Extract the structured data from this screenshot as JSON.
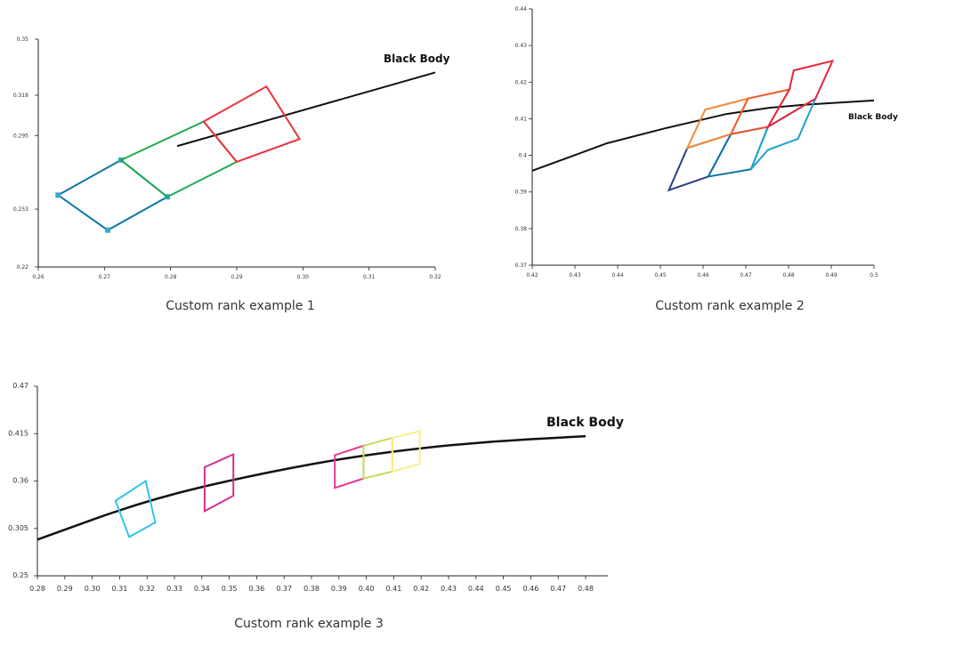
{
  "chart_data": [
    {
      "type": "line",
      "caption": "Custom rank example 1",
      "annotation": "Black Body",
      "xlim": [
        0.26,
        0.32
      ],
      "ylim": [
        0.22,
        0.35
      ],
      "xticks": [
        "0.26",
        "0.27",
        "0.28",
        "0.29",
        "0.30",
        "0.31",
        "0.32"
      ],
      "yticks": [
        "0.22",
        "0.253",
        "0.295",
        "0.318",
        "0.35"
      ],
      "yticks_values": [
        0.22,
        0.253,
        0.295,
        0.318,
        0.35
      ],
      "black_body_curve": [
        [
          0.281,
          0.289
        ],
        [
          0.32,
          0.331
        ]
      ],
      "series": [
        {
          "color": "#0a76a4",
          "points": [
            [
              0.263,
              0.261
            ],
            [
              0.2725,
              0.281
            ],
            [
              0.2795,
              0.26
            ],
            [
              0.2705,
              0.241
            ]
          ],
          "markers": "#3aa7c9"
        },
        {
          "color": "#1cab4e",
          "points": [
            [
              0.2725,
              0.281
            ],
            [
              0.285,
              0.303
            ],
            [
              0.29,
              0.28
            ],
            [
              0.2795,
              0.26
            ]
          ]
        },
        {
          "color": "#e8323a",
          "points": [
            [
              0.285,
              0.303
            ],
            [
              0.2945,
              0.323
            ],
            [
              0.2995,
              0.293
            ],
            [
              0.29,
              0.28
            ]
          ]
        }
      ]
    },
    {
      "type": "line",
      "caption": "Custom rank example 2",
      "annotation": "Black Body",
      "xlim": [
        0.42,
        0.5
      ],
      "ylim": [
        0.37,
        0.44
      ],
      "xticks": [
        "0.42",
        "0.43",
        "0.44",
        "0.45",
        "0.46",
        "0.47",
        "0.48",
        "0.49",
        "0.5"
      ],
      "yticks": [
        "0.37",
        "0.38",
        "0.39",
        "0.4",
        "0.41",
        "0.42",
        "0.43",
        "0.44"
      ],
      "black_body_curve": [
        [
          0.42,
          0.3958
        ],
        [
          0.4375,
          0.4033
        ],
        [
          0.4515,
          0.4075
        ],
        [
          0.4655,
          0.4113
        ],
        [
          0.4755,
          0.413
        ],
        [
          0.4835,
          0.4138
        ],
        [
          0.5,
          0.415
        ]
      ],
      "series": [
        {
          "color": "#2e3f86",
          "points": [
            [
              0.452,
              0.3905
            ],
            [
              0.4563,
              0.402
            ],
            [
              0.4665,
              0.4058
            ],
            [
              0.4612,
              0.3942
            ]
          ]
        },
        {
          "color": "#0a76a4",
          "points": [
            [
              0.4612,
              0.3942
            ],
            [
              0.4665,
              0.4058
            ],
            [
              0.4752,
              0.4078
            ],
            [
              0.4712,
              0.3962
            ]
          ]
        },
        {
          "color": "#1da3cc",
          "points": [
            [
              0.4712,
              0.3962
            ],
            [
              0.4752,
              0.4078
            ],
            [
              0.4863,
              0.4155
            ],
            [
              0.4822,
              0.4045
            ],
            [
              0.4752,
              0.4015
            ]
          ]
        },
        {
          "color": "#f08b3a",
          "points": [
            [
              0.4563,
              0.402
            ],
            [
              0.4605,
              0.4125
            ],
            [
              0.4705,
              0.4155
            ],
            [
              0.4665,
              0.4058
            ]
          ]
        },
        {
          "color": "#ee5a32",
          "points": [
            [
              0.4665,
              0.4058
            ],
            [
              0.4705,
              0.4155
            ],
            [
              0.4802,
              0.418
            ],
            [
              0.4752,
              0.4078
            ]
          ]
        },
        {
          "color": "#e8253e",
          "points": [
            [
              0.4752,
              0.4078
            ],
            [
              0.4802,
              0.418
            ],
            [
              0.4812,
              0.4232
            ],
            [
              0.4903,
              0.4258
            ],
            [
              0.4863,
              0.4155
            ]
          ]
        }
      ]
    },
    {
      "type": "line",
      "caption": "Custom rank example 3",
      "annotation": "Black Body",
      "xlim": [
        0.28,
        0.49
      ],
      "ylim": [
        0.25,
        0.47
      ],
      "xticks": [
        "0.28",
        "0.29",
        "0.30",
        "0.31",
        "0.32",
        "0.33",
        "0.34",
        "0.35",
        "0.36",
        "0.37",
        "0.38",
        "0.39",
        "0.40",
        "0.41",
        "0.42",
        "0.43",
        "0.44",
        "0.45",
        "0.46",
        "0.47",
        "0.48"
      ],
      "yticks": [
        "0.25",
        "0.305",
        "0.36",
        "0.415",
        "0.47"
      ],
      "yticks_values": [
        0.25,
        0.305,
        0.36,
        0.415,
        0.47
      ],
      "black_body_curve": [
        [
          0.28,
          0.292
        ],
        [
          0.32,
          0.338
        ],
        [
          0.36,
          0.368
        ],
        [
          0.4,
          0.391
        ],
        [
          0.44,
          0.405
        ],
        [
          0.48,
          0.412
        ]
      ],
      "series": [
        {
          "color": "#33c4e8",
          "points": [
            [
              0.3085,
              0.337
            ],
            [
              0.3195,
              0.36
            ],
            [
              0.323,
              0.312
            ],
            [
              0.3135,
              0.295
            ]
          ]
        },
        {
          "color": "#d32f8f",
          "points": [
            [
              0.341,
              0.376
            ],
            [
              0.3515,
              0.391
            ],
            [
              0.3515,
              0.343
            ],
            [
              0.341,
              0.325
            ]
          ]
        },
        {
          "color": "#e8388e",
          "points": [
            [
              0.3885,
              0.39
            ],
            [
              0.399,
              0.401
            ],
            [
              0.399,
              0.363
            ],
            [
              0.3885,
              0.352
            ]
          ]
        },
        {
          "color": "#c8d85a",
          "points": [
            [
              0.399,
              0.401
            ],
            [
              0.4095,
              0.41
            ],
            [
              0.4095,
              0.371
            ],
            [
              0.399,
              0.363
            ]
          ]
        },
        {
          "color": "#f6ef8a",
          "points": [
            [
              0.4095,
              0.41
            ],
            [
              0.4195,
              0.418
            ],
            [
              0.4195,
              0.38
            ],
            [
              0.4095,
              0.371
            ]
          ]
        }
      ]
    }
  ]
}
